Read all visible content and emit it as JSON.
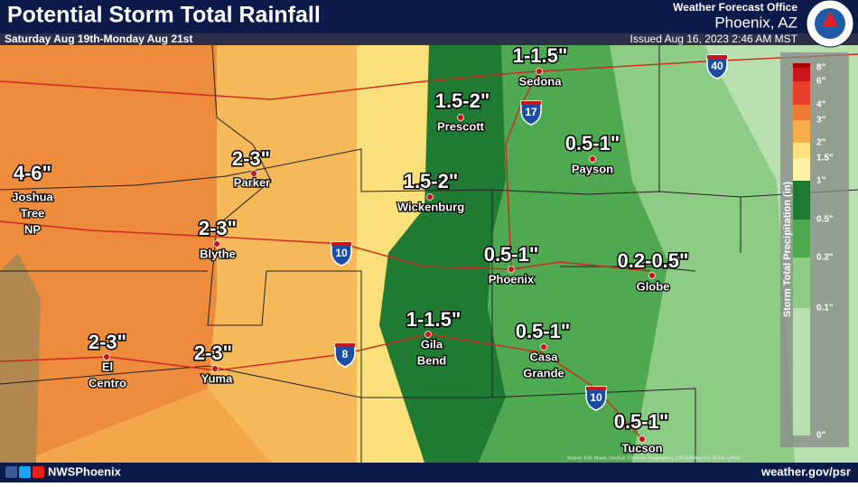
{
  "header": {
    "title": "Potential Storm Total Rainfall",
    "subtitle": "Saturday Aug 19th-Monday Aug 21st",
    "office": "Weather Forecast Office",
    "location": "Phoenix, AZ",
    "issued": "Issued Aug 16, 2023 2:46 AM MST"
  },
  "footer": {
    "social": "NWSPhoenix",
    "website": "weather.gov/psr",
    "source": "Source: Esri, Maxar, GeoEye, Earthstar Geographics, CNES/Airbus DS, USDA, USGS"
  },
  "legend": {
    "title": "Storm Total Precipitation (in)",
    "labels": [
      "8\"",
      "6\"",
      "4\"",
      "3\"",
      "2\"",
      "1.5\"",
      "1\"",
      "0.5\"",
      "0.2\"",
      "0.1\"",
      "0\""
    ]
  },
  "highways": [
    "40",
    "17",
    "10",
    "10",
    "8"
  ],
  "places": [
    {
      "amount": "1-1.5\"",
      "name": [
        "Sedona"
      ]
    },
    {
      "amount": "1.5-2\"",
      "name": [
        "Prescott"
      ]
    },
    {
      "amount": "0.5-1\"",
      "name": [
        "Payson"
      ]
    },
    {
      "amount": "2-3\"",
      "name": [
        "Parker"
      ]
    },
    {
      "amount": "4-6\"",
      "name": [
        "Joshua",
        "Tree",
        "NP"
      ]
    },
    {
      "amount": "1.5-2\"",
      "name": [
        "Wickenburg"
      ]
    },
    {
      "amount": "2-3\"",
      "name": [
        "Blythe"
      ]
    },
    {
      "amount": "0.5-1\"",
      "name": [
        "Phoenix"
      ]
    },
    {
      "amount": "0.2-0.5\"",
      "name": [
        "Globe"
      ]
    },
    {
      "amount": "1-1.5\"",
      "name": [
        "Gila",
        "Bend"
      ]
    },
    {
      "amount": "0.5-1\"",
      "name": [
        "Casa",
        "Grande"
      ]
    },
    {
      "amount": "2-3\"",
      "name": [
        "El",
        "Centro"
      ]
    },
    {
      "amount": "2-3\"",
      "name": [
        "Yuma"
      ]
    },
    {
      "amount": "0.5-1\"",
      "name": [
        "Tucson"
      ]
    }
  ]
}
